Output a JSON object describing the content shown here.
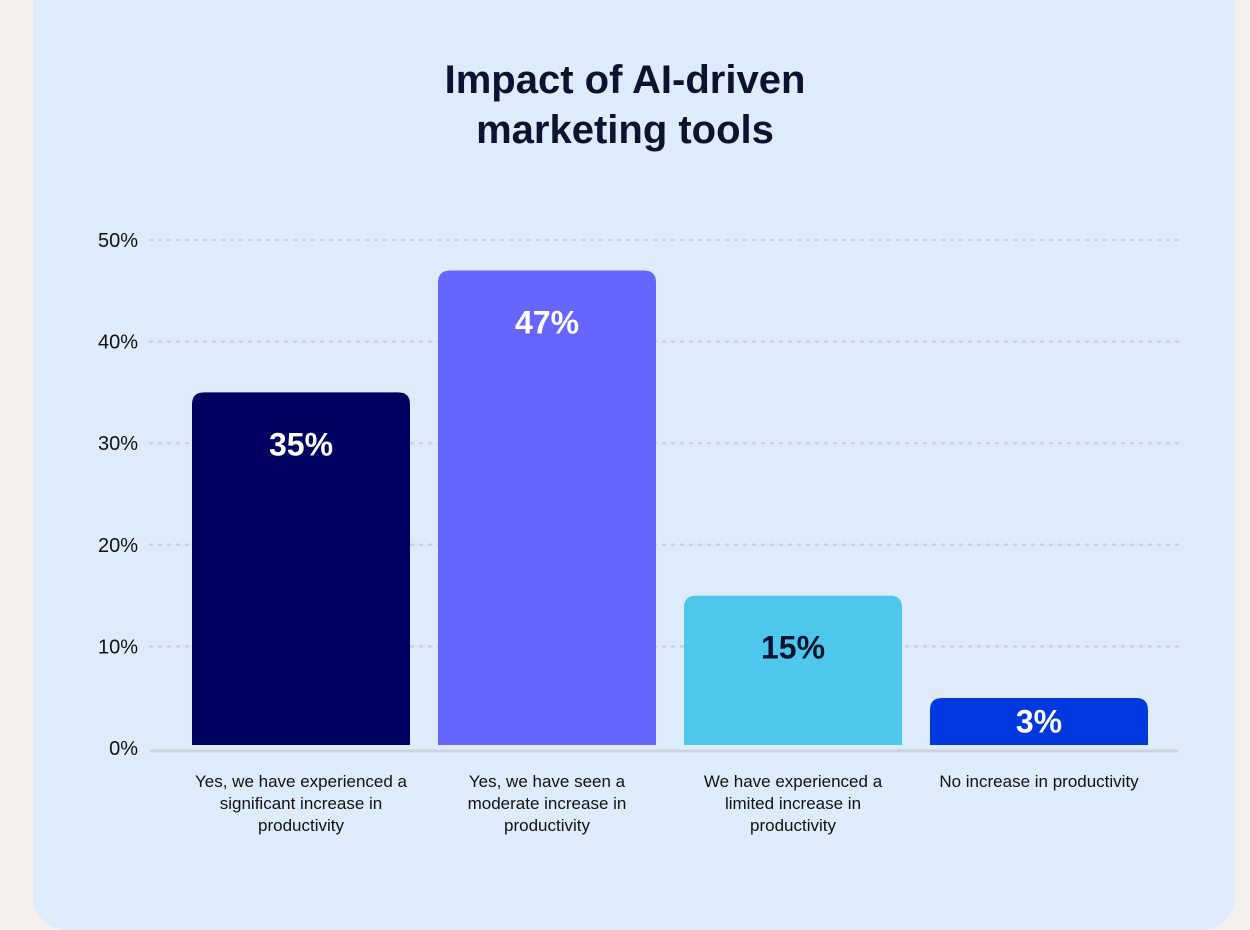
{
  "chart_data": {
    "type": "bar",
    "title_lines": [
      "Impact of AI-driven",
      "marketing tools"
    ],
    "categories": [
      "Yes, we have experienced a significant increase in productivity",
      "Yes, we have seen a moderate increase in productivity",
      "We have experienced a limited increase in productivity",
      "No increase in productivity"
    ],
    "values": [
      35,
      47,
      15,
      3
    ],
    "data_labels": [
      "35%",
      "47%",
      "15%",
      "3%"
    ],
    "colors": [
      "#000060",
      "#6666ff",
      "#4dc7eb",
      "#0038e0"
    ],
    "label_colors": [
      "#ffffff",
      "#ffffff",
      "#0b1330",
      "#ffffff"
    ],
    "yticks": [
      "0%",
      "10%",
      "20%",
      "30%",
      "40%",
      "50%"
    ],
    "ylim": [
      0,
      50
    ],
    "grid": true,
    "xlabel": "",
    "ylabel": ""
  }
}
